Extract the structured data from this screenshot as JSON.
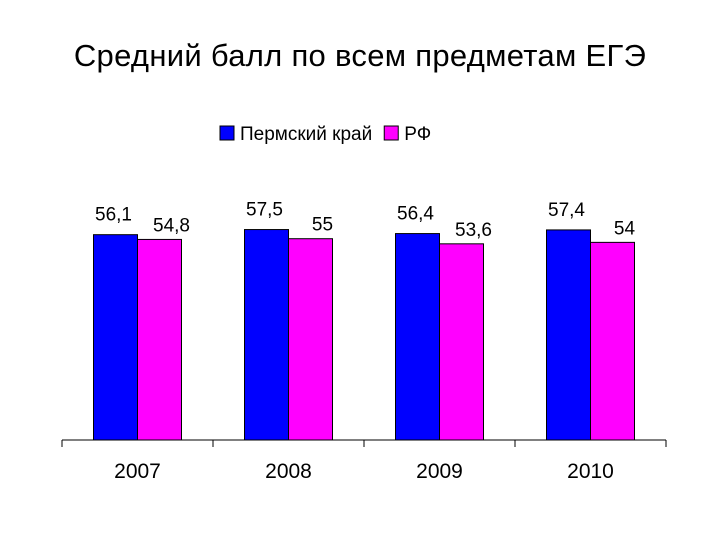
{
  "title": "Средний балл по всем предметам ЕГЭ",
  "chart_data": {
    "type": "bar",
    "title": "Средний балл по всем предметам ЕГЭ",
    "xlabel": "",
    "ylabel": "",
    "categories": [
      "2007",
      "2008",
      "2009",
      "2010"
    ],
    "series": [
      {
        "name": "Пермский край",
        "color": "#0000FF",
        "values": [
          56.1,
          57.5,
          56.4,
          57.4
        ],
        "labels": [
          "56,1",
          "57,5",
          "56,4",
          "57,4"
        ]
      },
      {
        "name": "РФ",
        "color": "#FF00FF",
        "values": [
          54.8,
          55,
          53.6,
          54
        ],
        "labels": [
          "54,8",
          "55",
          "53,6",
          "54"
        ]
      }
    ],
    "ylim": [
      0,
      63.5
    ],
    "grid": false,
    "legend": "top-center"
  }
}
